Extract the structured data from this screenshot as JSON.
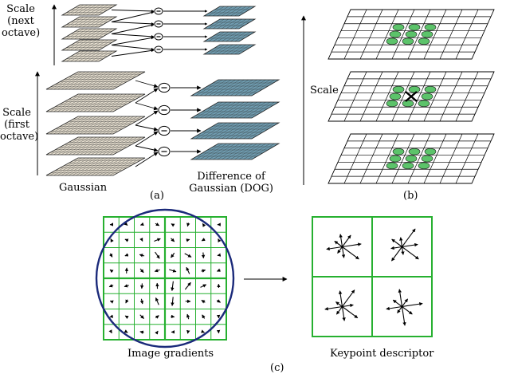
{
  "panel_a": {
    "scale_next_octave": [
      "Scale",
      "(next",
      "octave)"
    ],
    "scale_first_octave": [
      "Scale",
      "(first",
      "octave)"
    ],
    "gaussian_label": "Gaussian",
    "dog_label": [
      "Difference of",
      "Gaussian (DOG)"
    ],
    "panel_label": "(a)",
    "colors": {
      "gaussian": "#e3dccd",
      "dog": "#6f9cb0"
    }
  },
  "panel_b": {
    "scale_label": "Scale",
    "panel_label": "(b)",
    "colors": {
      "neighbor": "#5cc36a"
    }
  },
  "panel_c": {
    "gradients_label": "Image gradients",
    "descriptor_label": "Keypoint descriptor",
    "panel_label": "(c)",
    "colors": {
      "grid": "#27b030",
      "circle": "#1b2a7a"
    }
  }
}
